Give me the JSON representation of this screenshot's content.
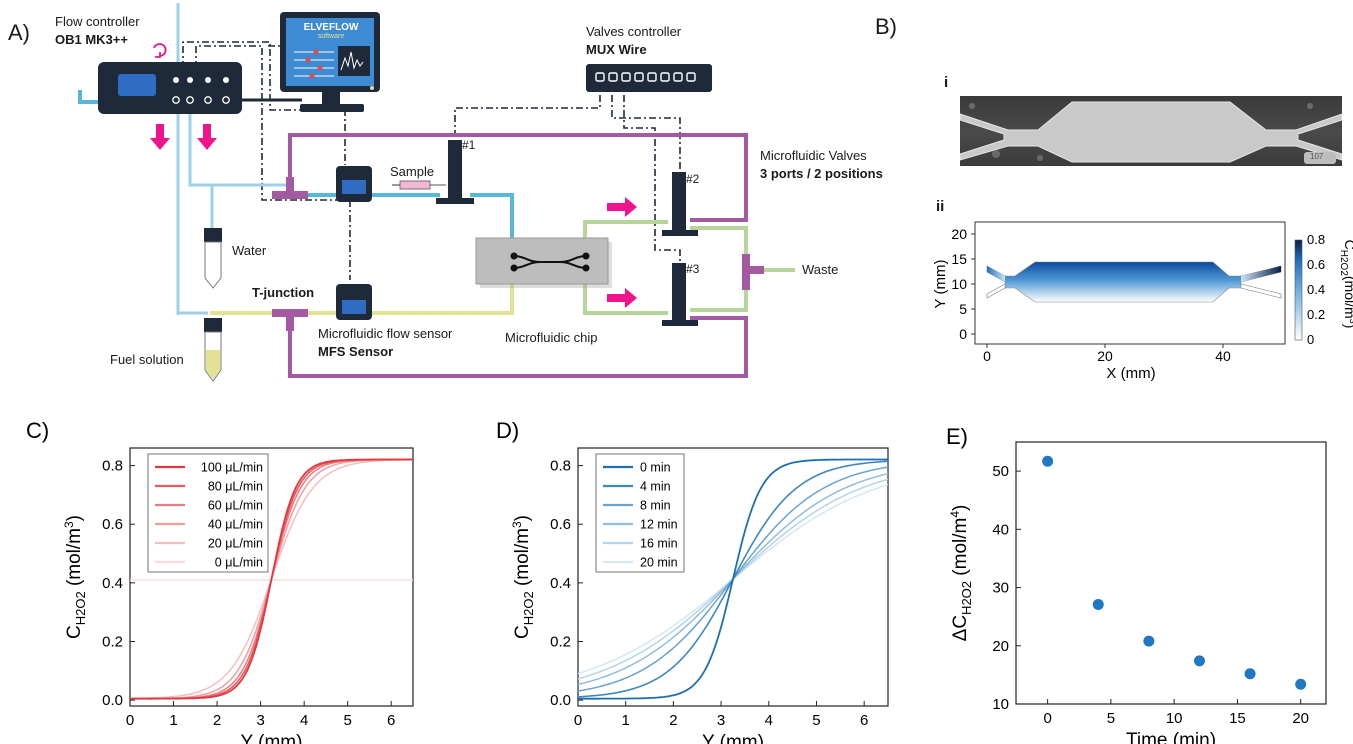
{
  "panel_a": {
    "letter": "A)",
    "flow_controller_title": "Flow controller",
    "flow_controller_model": "OB1 MK3++",
    "software_brand": "ELVEFLOW",
    "software_sub": "software",
    "valves_controller_title": "Valves controller",
    "valves_controller_model": "MUX Wire",
    "valve_1": "#1",
    "valve_2": "#2",
    "valve_3": "#3",
    "sample_label": "Sample",
    "water_label": "Water",
    "fuel_label": "Fuel solution",
    "tjunction_label": "T-junction",
    "flow_sensor_title": "Microfluidic flow sensor",
    "flow_sensor_model": "MFS Sensor",
    "chip_label": "Microfluidic chip",
    "valves_title": "Microfluidic Valves",
    "valves_spec": "3 ports / 2 positions",
    "waste_label": "Waste"
  },
  "panel_b": {
    "letter": "B)",
    "sub_i": "i",
    "sub_ii": "ii",
    "micro_scale_text": "107",
    "xlabel": "X (mm)",
    "ylabel": "Y (mm)",
    "x_ticks": [
      "0",
      "20",
      "40"
    ],
    "y_ticks": [
      "0",
      "5",
      "10",
      "15",
      "20"
    ],
    "cb_ticks": [
      "0",
      "0.2",
      "0.4",
      "0.6",
      "0.8"
    ],
    "cb_label_c": "C",
    "cb_label_sub": "H2O2",
    "cb_label_unit": "(mol/m",
    "cb_label_sup": "3",
    "cb_label_close": ")"
  },
  "colors": {
    "pink_arrow": "#f0148c",
    "purple_tube": "#a45aa0",
    "blue_tube": "#57b7d6",
    "light_blue_tube": "#9dd1ea",
    "yellow_tube": "#e3e193",
    "green_tube": "#b5d59a",
    "device_dark": "#1e2a3a",
    "marker_blue": "#1f78c1"
  },
  "chart_data": [
    {
      "panel": "C)",
      "type": "line",
      "ylabel_main": "C",
      "ylabel_sub": "H2O2",
      "ylabel_unit": " (mol/m",
      "ylabel_sup": "3",
      "ylabel_close": ")",
      "xlabel": "Y (mm)",
      "xlim": [
        0,
        6.5
      ],
      "ylim": [
        -0.02,
        0.86
      ],
      "x_ticks": [
        0,
        1,
        2,
        3,
        4,
        5,
        6
      ],
      "y_ticks": [
        0.0,
        0.2,
        0.4,
        0.6,
        0.8
      ],
      "legend_position": "top-left",
      "center": 3.25,
      "amplitude": 0.41,
      "series": [
        {
          "name": "100 μL/min",
          "color": "#e0393e",
          "width": 1.8,
          "flat": false,
          "slope": 3.6
        },
        {
          "name": "80 μL/min",
          "color": "#e55a5f",
          "width": 1.6,
          "flat": false,
          "slope": 3.3
        },
        {
          "name": "60 μL/min",
          "color": "#ea7c80",
          "width": 1.5,
          "flat": false,
          "slope": 3.0
        },
        {
          "name": "40 μL/min",
          "color": "#ef9da0",
          "width": 1.5,
          "flat": false,
          "slope": 2.6
        },
        {
          "name": "20 μL/min",
          "color": "#f4bec0",
          "width": 1.5,
          "flat": false,
          "slope": 2.1
        },
        {
          "name": "0 μL/min",
          "color": "#fadcdd",
          "width": 1.5,
          "flat": true,
          "slope": 0
        }
      ]
    },
    {
      "panel": "D)",
      "type": "line",
      "ylabel_main": "C",
      "ylabel_sub": "H2O2",
      "ylabel_unit": " (mol/m",
      "ylabel_sup": "3",
      "ylabel_close": ")",
      "xlabel": "Y (mm)",
      "xlim": [
        0,
        6.5
      ],
      "ylim": [
        -0.02,
        0.86
      ],
      "x_ticks": [
        0,
        1,
        2,
        3,
        4,
        5,
        6
      ],
      "y_ticks": [
        0.0,
        0.2,
        0.4,
        0.6,
        0.8
      ],
      "legend_position": "top-left",
      "center": 3.25,
      "amplitude": 0.41,
      "series": [
        {
          "name": "0 min",
          "color": "#1f6fae",
          "width": 1.8,
          "slope": 3.4
        },
        {
          "name": "4 min",
          "color": "#3f87bf",
          "width": 1.6,
          "slope": 1.5
        },
        {
          "name": "8 min",
          "color": "#68a3cf",
          "width": 1.5,
          "slope": 1.05
        },
        {
          "name": "12 min",
          "color": "#91bddc",
          "width": 1.5,
          "slope": 0.85
        },
        {
          "name": "16 min",
          "color": "#b6d3e8",
          "width": 1.5,
          "slope": 0.74
        },
        {
          "name": "20 min",
          "color": "#d6e6f2",
          "width": 1.5,
          "slope": 0.66
        }
      ]
    },
    {
      "panel": "E)",
      "type": "scatter",
      "ylabel_main": "ΔC",
      "ylabel_sub": "H2O2",
      "ylabel_unit": " (mol/m",
      "ylabel_sup": "4",
      "ylabel_close": ")",
      "xlabel": "Time (min)",
      "xlim": [
        -2.5,
        22
      ],
      "ylim": [
        10,
        55
      ],
      "x_ticks": [
        0,
        5,
        10,
        15,
        20
      ],
      "y_ticks": [
        10,
        20,
        30,
        40,
        50
      ],
      "x": [
        0,
        4,
        8,
        12,
        16,
        20
      ],
      "y": [
        51.7,
        27.1,
        20.8,
        17.4,
        15.2,
        13.4
      ],
      "color": "#1f78c1"
    }
  ]
}
